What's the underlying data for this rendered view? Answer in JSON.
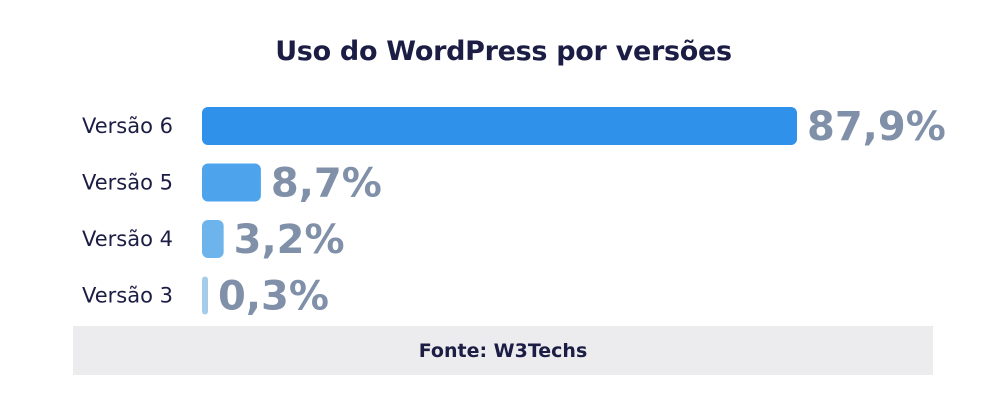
{
  "chart_data": {
    "type": "bar",
    "orientation": "horizontal",
    "title": "Uso do WordPress por versões",
    "categories": [
      "Versão 6",
      "Versão 5",
      "Versão 4",
      "Versão 3"
    ],
    "values": [
      87.9,
      8.7,
      3.2,
      0.3
    ],
    "value_labels": [
      "87,9%",
      "8,7%",
      "3,2%",
      "0,3%"
    ],
    "bar_colors": [
      "#2f91ea",
      "#4ea4ec",
      "#6eb4ec",
      "#a5cdea"
    ],
    "xlim": [
      0,
      87.9
    ],
    "grid": false,
    "legend": "none"
  },
  "source": {
    "label": "Fonte: W3Techs"
  },
  "colors": {
    "title": "#1c1d44",
    "value_label": "#7f90a8",
    "source_bg": "#ececee"
  }
}
